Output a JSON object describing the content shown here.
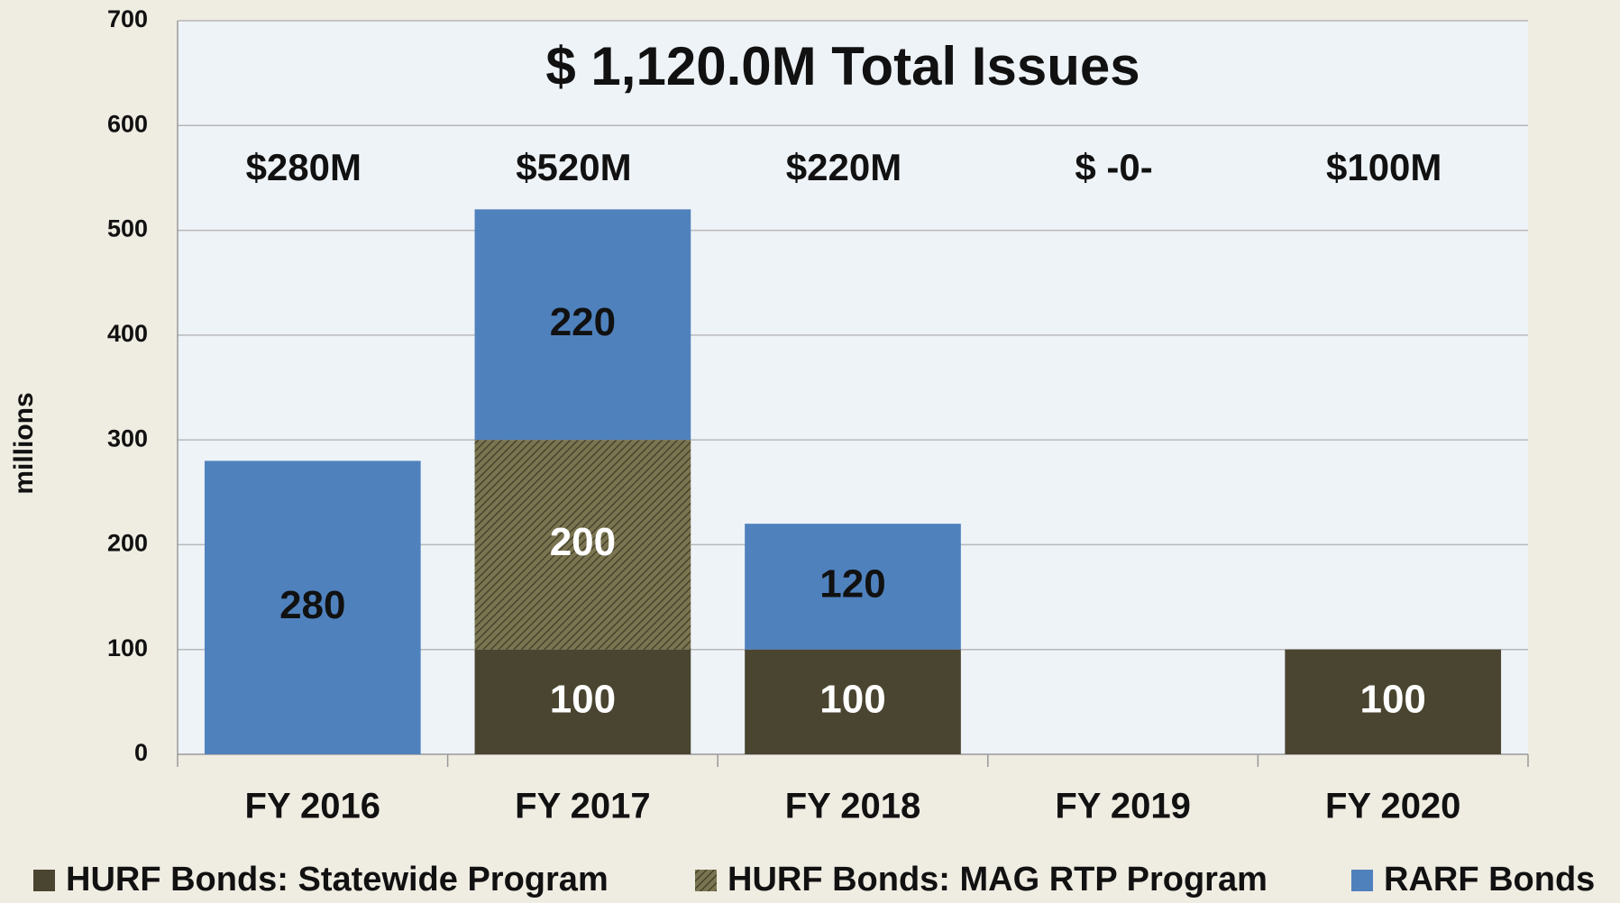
{
  "chart_data": {
    "type": "stacked_bar",
    "title": "$ 1,120.0M Total Issues",
    "y_label": "millions",
    "categories": [
      "FY 2016",
      "FY 2017",
      "FY 2018",
      "FY 2019",
      "FY 2020"
    ],
    "annotations": [
      "$280M",
      "$520M",
      "$220M",
      "$ -0-",
      "$100M"
    ],
    "series": [
      {
        "name": "HURF Bonds: Statewide Program",
        "color": "#4a4530",
        "values": [
          0,
          100,
          100,
          0,
          100
        ]
      },
      {
        "name": "HURF Bonds: MAG RTP Program",
        "color": "#7a7550",
        "pattern": "hatch",
        "values": [
          0,
          200,
          0,
          0,
          0
        ]
      },
      {
        "name": "RARF Bonds",
        "color": "#4f81bd",
        "values": [
          280,
          220,
          120,
          0,
          0
        ]
      }
    ],
    "ylim": [
      0,
      700
    ],
    "yticks": [
      0,
      100,
      200,
      300,
      400,
      500,
      600,
      700
    ],
    "grid": true,
    "legend": "bottom"
  }
}
